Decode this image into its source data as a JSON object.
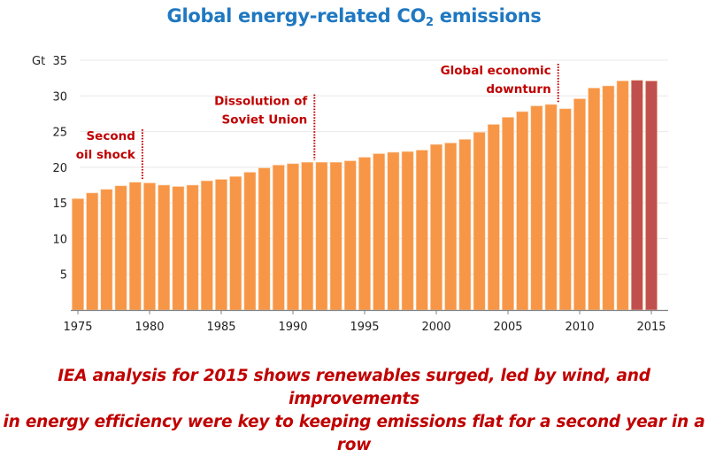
{
  "title": {
    "prefix": "Global energy-related CO",
    "subscript": "2",
    "suffix": " emissions"
  },
  "caption": {
    "line1": "IEA analysis for 2015 shows renewables surged, led by wind, and improvements",
    "line2": "in energy efficiency were key to keeping emissions flat for a second year in a row"
  },
  "colors": {
    "bar": "#f79646",
    "bar_highlight": "#c0504d",
    "annotation": "#c00000",
    "title": "#1f78c1",
    "grid": "#e8e8e8"
  },
  "chart_data": {
    "type": "bar",
    "title": "Global energy-related CO2 emissions",
    "xlabel": "",
    "ylabel": "Gt",
    "ylim": [
      0,
      35
    ],
    "yticks": [
      5,
      10,
      15,
      20,
      25,
      30,
      35
    ],
    "xticks": [
      1975,
      1980,
      1985,
      1990,
      1995,
      2000,
      2005,
      2010,
      2015
    ],
    "grid": true,
    "categories": [
      1975,
      1976,
      1977,
      1978,
      1979,
      1980,
      1981,
      1982,
      1983,
      1984,
      1985,
      1986,
      1987,
      1988,
      1989,
      1990,
      1991,
      1992,
      1993,
      1994,
      1995,
      1996,
      1997,
      1998,
      1999,
      2000,
      2001,
      2002,
      2003,
      2004,
      2005,
      2006,
      2007,
      2008,
      2009,
      2010,
      2011,
      2012,
      2013,
      2014,
      2015
    ],
    "values": [
      15.6,
      16.4,
      16.9,
      17.4,
      17.9,
      17.8,
      17.5,
      17.3,
      17.5,
      18.1,
      18.3,
      18.7,
      19.3,
      19.9,
      20.3,
      20.5,
      20.7,
      20.7,
      20.7,
      20.9,
      21.4,
      21.9,
      22.1,
      22.2,
      22.4,
      23.2,
      23.4,
      23.9,
      24.9,
      26.0,
      27.0,
      27.8,
      28.6,
      28.8,
      28.2,
      29.6,
      31.1,
      31.4,
      32.1,
      32.2,
      32.1
    ],
    "highlighted": [
      2014,
      2015
    ],
    "annotations": [
      {
        "lines": [
          "Second",
          "oil shock"
        ],
        "year": 1979.5,
        "y_top": 25.3,
        "y_bottom": 18.3
      },
      {
        "lines": [
          "Dissolution of",
          "Soviet Union"
        ],
        "year": 1991.5,
        "y_top": 30.2,
        "y_bottom": 21.0
      },
      {
        "lines": [
          "Global economic",
          "downturn"
        ],
        "year": 2008.5,
        "y_top": 34.5,
        "y_bottom": 29.1
      }
    ]
  }
}
